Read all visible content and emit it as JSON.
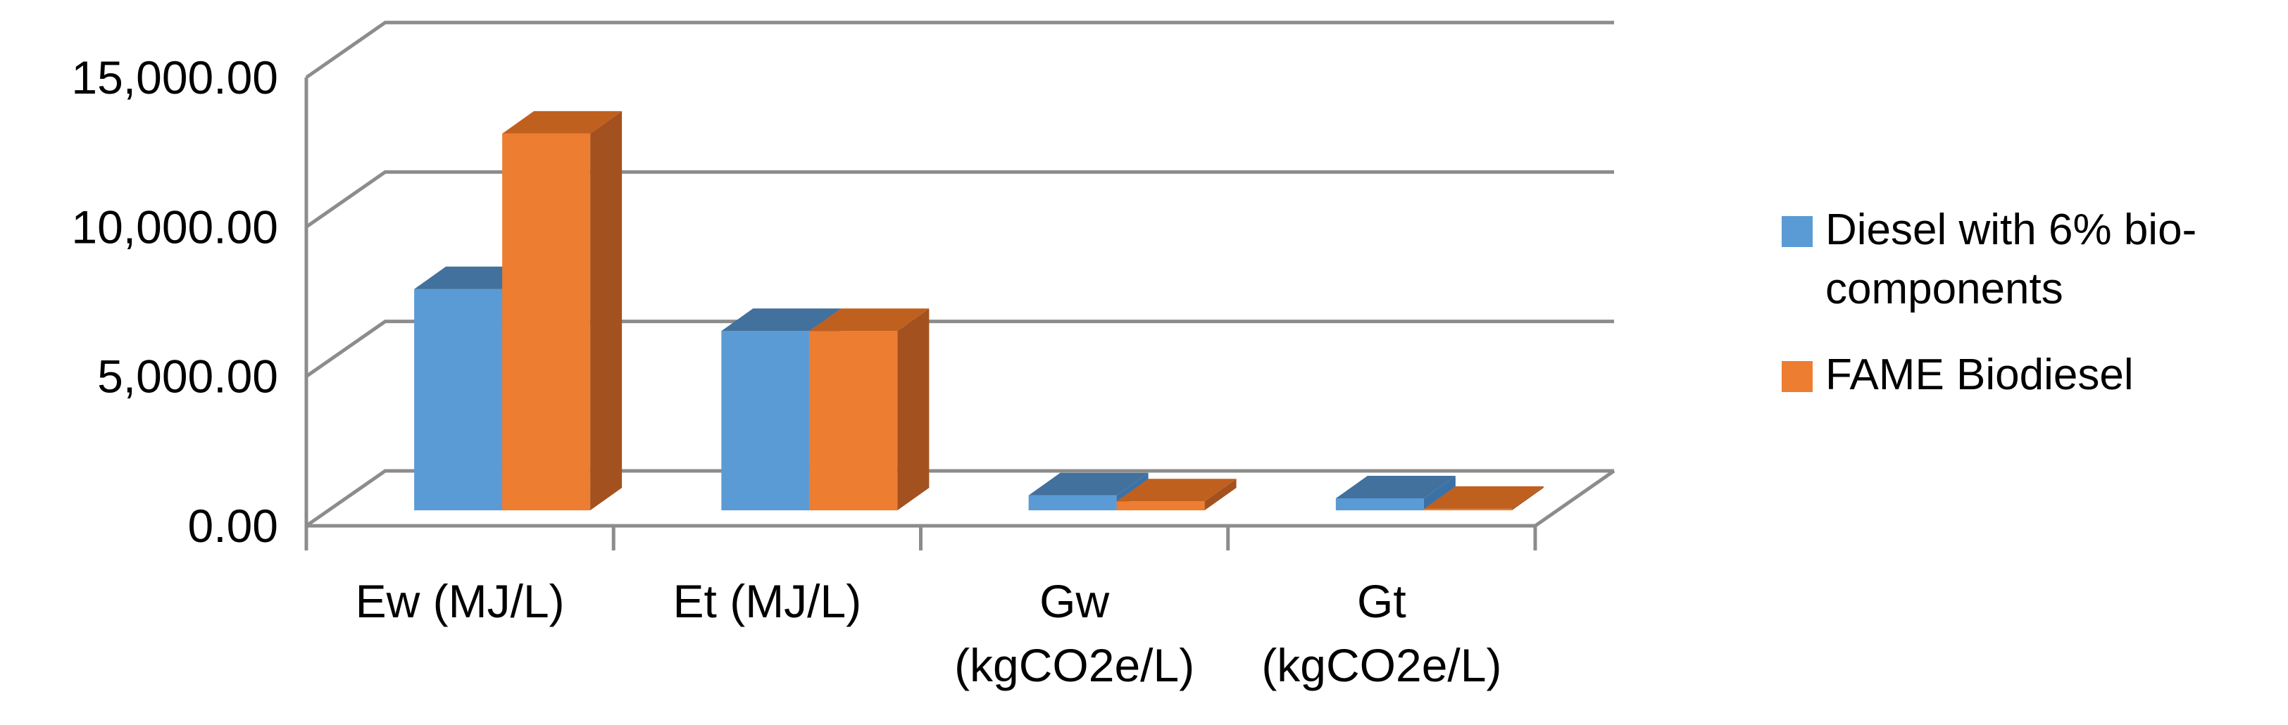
{
  "chart_data": {
    "type": "bar",
    "variant": "3d-clustered-column",
    "title": "",
    "xlabel": "",
    "ylabel": "",
    "categories": [
      "Ew (MJ/L)",
      "Et (MJ/L)",
      "Gw (kgCO2e/L)",
      "Gt (kgCO2e/L)"
    ],
    "series": [
      {
        "name": "Diesel with 6% bio-components",
        "color": "#5b9bd5",
        "side_color": "#3a72a8",
        "top_color": "#41719c",
        "values": [
          7400,
          6000,
          500,
          400
        ]
      },
      {
        "name": "FAME Biodiesel",
        "color": "#ed7d31",
        "side_color": "#a3521f",
        "top_color": "#c0601f",
        "values": [
          12600,
          6000,
          300,
          50
        ]
      }
    ],
    "yticks": [
      "0.00",
      "5,000.00",
      "10,000.00",
      "15,000.00"
    ],
    "ytick_values": [
      0,
      5000,
      10000,
      15000
    ],
    "ylim": [
      0,
      15000
    ],
    "grid": true,
    "legend_position": "right"
  }
}
